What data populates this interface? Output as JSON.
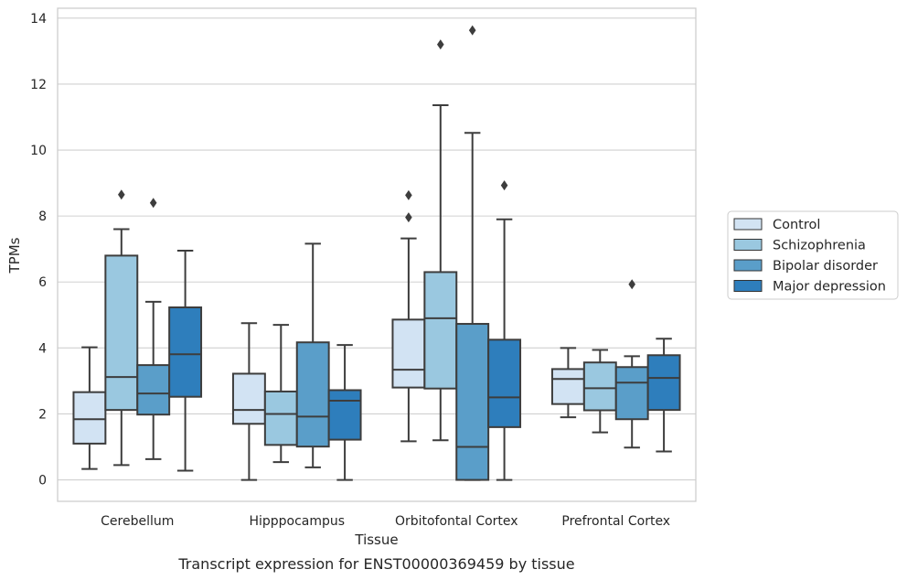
{
  "chart_data": {
    "type": "boxplot",
    "xlabel": "Tissue",
    "ylabel": "TPMs",
    "caption": "Transcript expression for ENST00000369459 by tissue",
    "ylim": [
      -0.65,
      14.3
    ],
    "yticks": [
      0,
      2,
      4,
      6,
      8,
      10,
      12,
      14
    ],
    "grid": true,
    "legend_position": "right",
    "categories": [
      "Cerebellum",
      "Hipppocampus",
      "Orbitofontal Cortex",
      "Prefrontal Cortex"
    ],
    "series": [
      {
        "name": "Control",
        "color": "#d2e3f3",
        "boxes": [
          {
            "low": 0.33,
            "q1": 1.1,
            "median": 1.84,
            "q3": 2.66,
            "high": 4.02,
            "outliers": []
          },
          {
            "low": 0.0,
            "q1": 1.7,
            "median": 2.12,
            "q3": 3.22,
            "high": 4.75,
            "outliers": []
          },
          {
            "low": 1.17,
            "q1": 2.8,
            "median": 3.34,
            "q3": 4.86,
            "high": 7.32,
            "outliers": [
              7.96,
              8.63
            ]
          },
          {
            "low": 1.9,
            "q1": 2.3,
            "median": 3.06,
            "q3": 3.36,
            "high": 4.0,
            "outliers": []
          }
        ]
      },
      {
        "name": "Schizophrenia",
        "color": "#9ac8e0",
        "boxes": [
          {
            "low": 0.45,
            "q1": 2.12,
            "median": 3.12,
            "q3": 6.8,
            "high": 7.6,
            "outliers": [
              8.65
            ]
          },
          {
            "low": 0.54,
            "q1": 1.06,
            "median": 2.0,
            "q3": 2.68,
            "high": 4.7,
            "outliers": []
          },
          {
            "low": 1.2,
            "q1": 2.77,
            "median": 4.9,
            "q3": 6.3,
            "high": 11.36,
            "outliers": [
              13.2
            ]
          },
          {
            "low": 1.44,
            "q1": 2.11,
            "median": 2.78,
            "q3": 3.56,
            "high": 3.94,
            "outliers": []
          }
        ]
      },
      {
        "name": "Bipolar disorder",
        "color": "#5a9ec9",
        "boxes": [
          {
            "low": 0.63,
            "q1": 1.98,
            "median": 2.62,
            "q3": 3.48,
            "high": 5.4,
            "outliers": [
              8.4
            ]
          },
          {
            "low": 0.38,
            "q1": 1.01,
            "median": 1.92,
            "q3": 4.17,
            "high": 7.16,
            "outliers": []
          },
          {
            "low": 0.0,
            "q1": 0.0,
            "median": 1.0,
            "q3": 4.73,
            "high": 10.52,
            "outliers": [
              13.63
            ]
          },
          {
            "low": 0.98,
            "q1": 1.84,
            "median": 2.95,
            "q3": 3.42,
            "high": 3.75,
            "outliers": [
              5.93
            ]
          }
        ]
      },
      {
        "name": "Major depression",
        "color": "#2e7ebc",
        "boxes": [
          {
            "low": 0.28,
            "q1": 2.52,
            "median": 3.81,
            "q3": 5.23,
            "high": 6.95,
            "outliers": []
          },
          {
            "low": 0.0,
            "q1": 1.22,
            "median": 2.4,
            "q3": 2.72,
            "high": 4.09,
            "outliers": []
          },
          {
            "low": 0.0,
            "q1": 1.6,
            "median": 2.5,
            "q3": 4.25,
            "high": 7.9,
            "outliers": [
              8.93
            ]
          },
          {
            "low": 0.86,
            "q1": 2.12,
            "median": 3.09,
            "q3": 3.78,
            "high": 4.28,
            "outliers": []
          }
        ]
      }
    ]
  }
}
